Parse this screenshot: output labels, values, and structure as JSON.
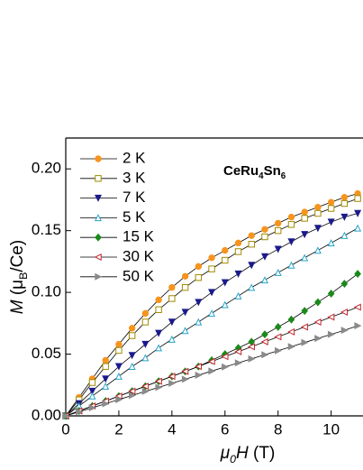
{
  "chart_data": {
    "type": "line",
    "annotation": "CeRu4Sn6",
    "x_label": "μ0H (T)",
    "y_label": "M (μB/Ce)",
    "x": [
      0,
      0.5,
      1,
      1.5,
      2,
      2.5,
      3,
      3.5,
      4,
      4.5,
      5,
      5.5,
      6,
      6.5,
      7,
      7.5,
      8,
      8.5,
      9,
      9.5,
      10,
      10.5,
      11
    ],
    "series": [
      {
        "name": "2 K",
        "color": "#f7941d",
        "marker": "circle",
        "filled": true,
        "values": [
          0,
          0.015,
          0.03,
          0.045,
          0.058,
          0.071,
          0.083,
          0.094,
          0.104,
          0.113,
          0.121,
          0.128,
          0.134,
          0.14,
          0.146,
          0.151,
          0.156,
          0.161,
          0.165,
          0.169,
          0.173,
          0.177,
          0.18
        ]
      },
      {
        "name": "3 K",
        "color": "#a08a00",
        "marker": "square",
        "filled": false,
        "values": [
          0,
          0.013,
          0.027,
          0.04,
          0.053,
          0.065,
          0.076,
          0.086,
          0.095,
          0.104,
          0.112,
          0.119,
          0.126,
          0.133,
          0.139,
          0.145,
          0.15,
          0.155,
          0.16,
          0.164,
          0.168,
          0.172,
          0.176
        ]
      },
      {
        "name": "7 K",
        "color": "#1a1a8c",
        "marker": "down",
        "filled": true,
        "values": [
          0,
          0.01,
          0.02,
          0.03,
          0.04,
          0.049,
          0.058,
          0.067,
          0.076,
          0.084,
          0.092,
          0.1,
          0.108,
          0.115,
          0.122,
          0.129,
          0.135,
          0.141,
          0.147,
          0.152,
          0.157,
          0.161,
          0.164
        ]
      },
      {
        "name": "5 K",
        "color": "#2aa4c8",
        "marker": "up",
        "filled": false,
        "values": [
          0,
          0.008,
          0.016,
          0.024,
          0.032,
          0.04,
          0.047,
          0.055,
          0.062,
          0.069,
          0.076,
          0.083,
          0.09,
          0.097,
          0.104,
          0.11,
          0.116,
          0.122,
          0.128,
          0.134,
          0.14,
          0.146,
          0.152
        ]
      },
      {
        "name": "15 K",
        "color": "#1a8a1a",
        "marker": "diamond",
        "filled": true,
        "values": [
          0,
          0.004,
          0.008,
          0.012,
          0.016,
          0.02,
          0.024,
          0.028,
          0.032,
          0.036,
          0.04,
          0.045,
          0.05,
          0.055,
          0.06,
          0.066,
          0.072,
          0.078,
          0.085,
          0.092,
          0.099,
          0.107,
          0.115
        ]
      },
      {
        "name": "30 K",
        "color": "#c0262d",
        "marker": "left",
        "filled": false,
        "values": [
          0,
          0.004,
          0.008,
          0.012,
          0.016,
          0.02,
          0.024,
          0.028,
          0.032,
          0.036,
          0.04,
          0.044,
          0.048,
          0.052,
          0.056,
          0.06,
          0.064,
          0.068,
          0.072,
          0.076,
          0.08,
          0.084,
          0.088
        ]
      },
      {
        "name": "50 K",
        "color": "#8a8a8a",
        "marker": "right",
        "filled": true,
        "values": [
          0,
          0.0033,
          0.0066,
          0.0099,
          0.0132,
          0.0165,
          0.0198,
          0.0231,
          0.0264,
          0.0297,
          0.033,
          0.0363,
          0.0396,
          0.0429,
          0.0462,
          0.0495,
          0.0528,
          0.0561,
          0.0594,
          0.0627,
          0.066,
          0.0693,
          0.073
        ]
      }
    ],
    "xlim": [
      0,
      11.2
    ],
    "ylim": [
      0,
      0.225
    ],
    "xticks": [
      0,
      2,
      4,
      6,
      8,
      10
    ],
    "yticks": [
      {
        "value": 0,
        "label": "0.00"
      },
      {
        "value": 0.05,
        "label": "0.05"
      },
      {
        "value": 0.1,
        "label": "0.10"
      },
      {
        "value": 0.15,
        "label": "0.15"
      },
      {
        "value": 0.2,
        "label": "0.20"
      }
    ],
    "legend": "upper-left",
    "grid": false
  }
}
